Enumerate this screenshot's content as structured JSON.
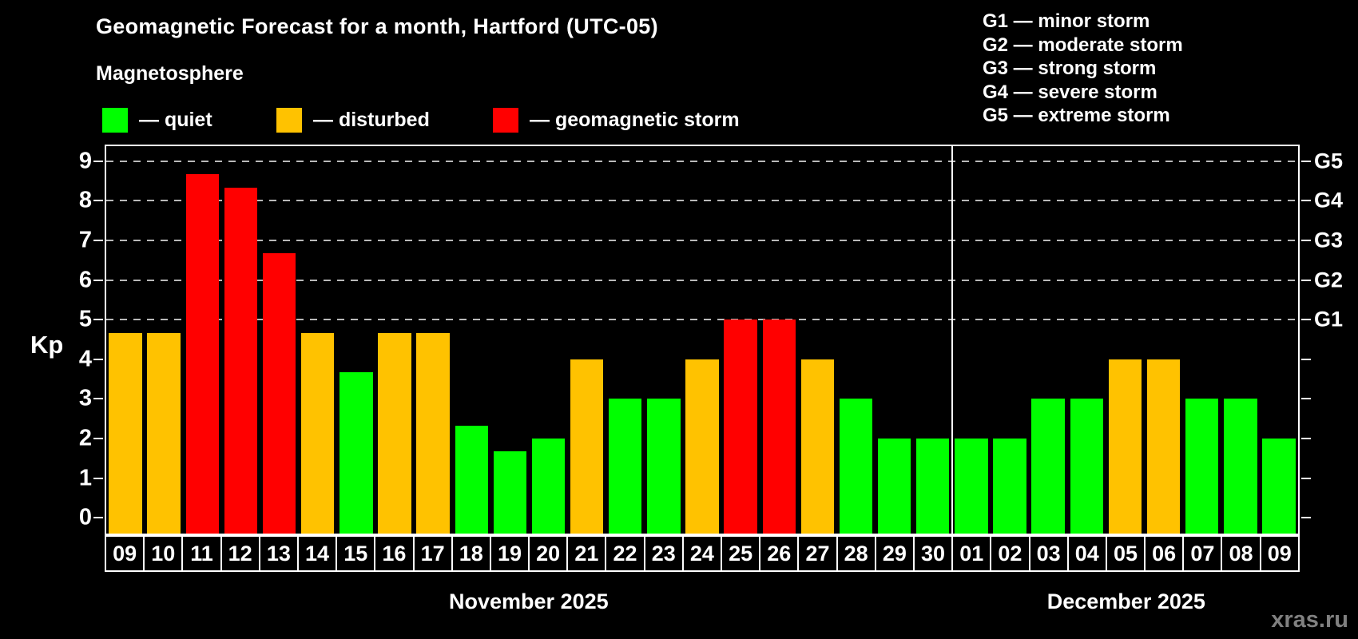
{
  "header": {
    "title": "Geomagnetic Forecast for a month, Hartford (UTC-05)"
  },
  "legend": {
    "title": "Magnetosphere",
    "items": [
      {
        "key": "quiet",
        "label": "— quiet",
        "color": "#00ff00"
      },
      {
        "key": "disturbed",
        "label": "— disturbed",
        "color": "#ffc200"
      },
      {
        "key": "storm",
        "label": "— geomagnetic storm",
        "color": "#ff0000"
      }
    ]
  },
  "g_legend": [
    "G1 — minor storm",
    "G2 — moderate storm",
    "G3 — strong storm",
    "G4 — severe storm",
    "G5 — extreme storm"
  ],
  "watermark": "xras.ru",
  "chart_data": {
    "type": "bar",
    "title": "Geomagnetic Forecast for a month, Hartford (UTC-05)",
    "xlabel": "",
    "ylabel": "Kp",
    "ylim": [
      0,
      9
    ],
    "yticks": [
      0,
      1,
      2,
      3,
      4,
      5,
      6,
      7,
      8,
      9
    ],
    "gridlines": {
      "values": [
        5,
        6,
        7,
        8,
        9
      ],
      "style": "dashed",
      "color": "#b9b9b9"
    },
    "right_axis": [
      {
        "label": "G1",
        "value": 5
      },
      {
        "label": "G2",
        "value": 6
      },
      {
        "label": "G3",
        "value": 7
      },
      {
        "label": "G4",
        "value": 8
      },
      {
        "label": "G5",
        "value": 9
      }
    ],
    "legend_position": "top",
    "months": [
      {
        "label": "November 2025",
        "days": 22
      },
      {
        "label": "December 2025",
        "days": 9
      }
    ],
    "categories": [
      "09",
      "10",
      "11",
      "12",
      "13",
      "14",
      "15",
      "16",
      "17",
      "18",
      "19",
      "20",
      "21",
      "22",
      "23",
      "24",
      "25",
      "26",
      "27",
      "28",
      "29",
      "30",
      "01",
      "02",
      "03",
      "04",
      "05",
      "06",
      "07",
      "08",
      "09"
    ],
    "values": [
      4.67,
      4.67,
      8.67,
      8.33,
      6.67,
      4.67,
      3.67,
      4.67,
      4.67,
      2.33,
      1.67,
      2,
      4,
      3,
      3,
      4,
      5,
      5,
      4,
      3,
      2,
      2,
      2,
      2,
      3,
      3,
      4,
      4,
      3,
      3,
      2
    ],
    "statuses": [
      "disturbed",
      "disturbed",
      "storm",
      "storm",
      "storm",
      "disturbed",
      "quiet",
      "disturbed",
      "disturbed",
      "quiet",
      "quiet",
      "quiet",
      "disturbed",
      "quiet",
      "quiet",
      "disturbed",
      "storm",
      "storm",
      "disturbed",
      "quiet",
      "quiet",
      "quiet",
      "quiet",
      "quiet",
      "quiet",
      "quiet",
      "disturbed",
      "disturbed",
      "quiet",
      "quiet",
      "quiet"
    ],
    "colors": {
      "quiet": "#00ff00",
      "disturbed": "#ffc200",
      "storm": "#ff0000"
    }
  }
}
